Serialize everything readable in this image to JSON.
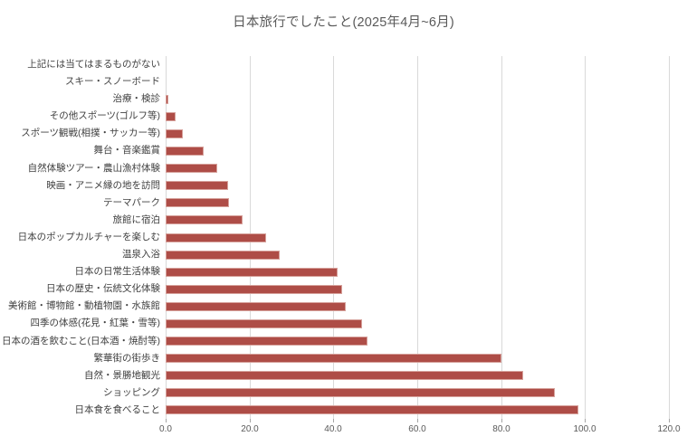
{
  "chart_data": {
    "type": "bar",
    "orientation": "horizontal",
    "title": "日本旅行でしたこと(2025年4月~6月)",
    "categories_order": "top-to-bottom",
    "categories": [
      "上記には当てはまるものがない",
      "スキー・スノーボード",
      "治療・検診",
      "その他スポーツ(ゴルフ等)",
      "スポーツ観戦(相撲・サッカー等)",
      "舞台・音楽鑑賞",
      "自然体験ツアー・農山漁村体験",
      "映画・アニメ縁の地を訪問",
      "テーマパーク",
      "旅館に宿泊",
      "日本のポップカルチャーを楽しむ",
      "温泉入浴",
      "日本の日常生活体験",
      "日本の歴史・伝統文化体験",
      "美術館・博物館・動植物園・水族館",
      "四季の体感(花見・紅葉・雪等)",
      "日本の酒を飲むこと(日本酒・焼酎等)",
      "繁華街の街歩き",
      "自然・景勝地観光",
      "ショッピング",
      "日本食を食べること"
    ],
    "values": [
      0.0,
      0.0,
      0.7,
      2.4,
      4.2,
      9.1,
      12.4,
      14.9,
      15.0,
      18.3,
      23.9,
      27.2,
      41.0,
      42.1,
      43.0,
      46.8,
      48.1,
      80.0,
      85.2,
      92.8,
      98.4
    ],
    "xlabel": "",
    "ylabel": "",
    "xlim": [
      0,
      120
    ],
    "x_tick_labels": [
      "0.0",
      "20.0",
      "40.0",
      "60.0",
      "80.0",
      "100.0",
      "120.0"
    ],
    "grid": true,
    "legend": false,
    "bar_color": "#ae4d47",
    "bar_border_color": "#d6a19b",
    "gridline_color": "#d9d9d9",
    "title_color": "#595959",
    "label_color": "#404040",
    "tick_label_color": "#595959",
    "background_color": "#ffffff"
  }
}
